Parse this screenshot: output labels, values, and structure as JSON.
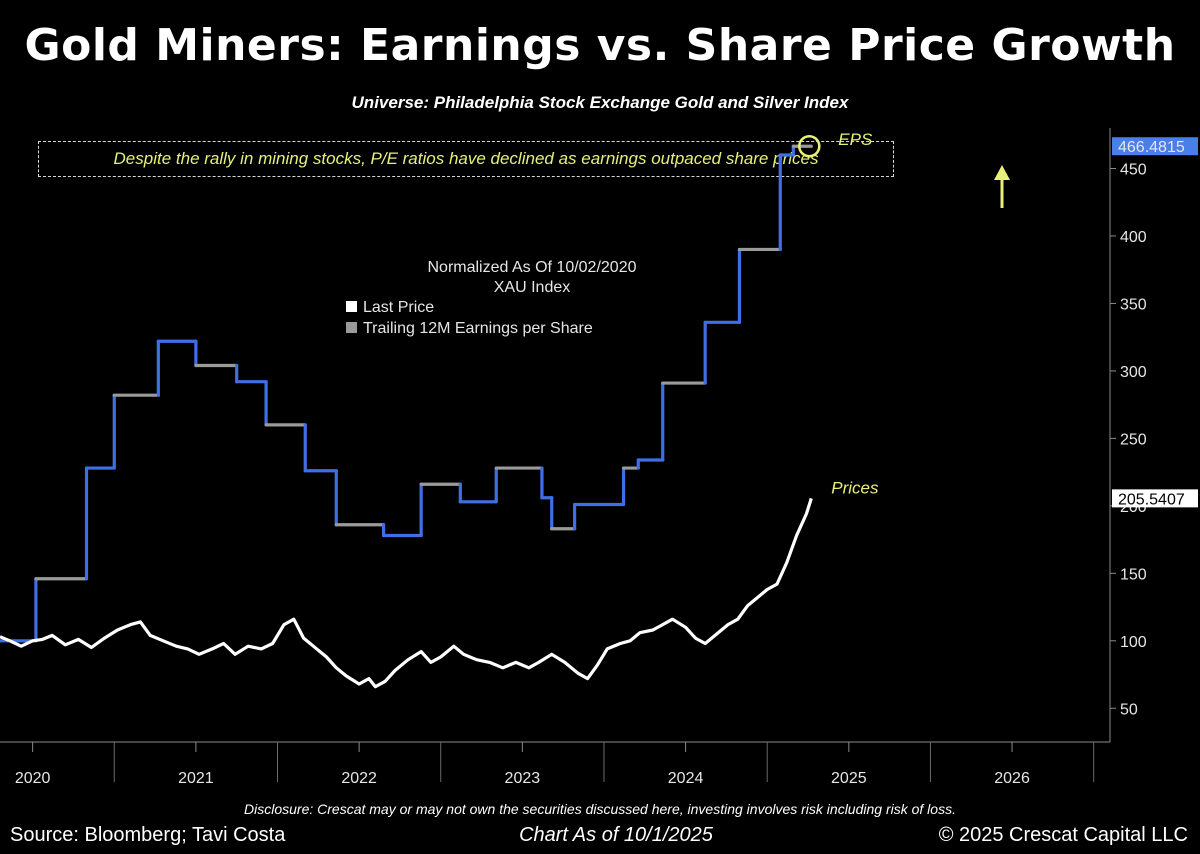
{
  "header": {
    "title": "Gold Miners: Earnings vs. Share Price Growth",
    "subtitle": "Universe: Philadelphia Stock Exchange Gold and Silver Index",
    "callout": "Despite the rally in mining stocks, P/E ratios have declined as earnings outpaced share prices"
  },
  "footer": {
    "disclosure": "Disclosure: Crescat may or may not own the securities discussed here, investing involves risk including risk of loss.",
    "source": "Source: Bloomberg; Tavi Costa",
    "chart_as_of": "Chart As of 10/1/2025",
    "copyright": "© 2025 Crescat Capital LLC"
  },
  "colors": {
    "eps_line": "#3f6fe6",
    "eps_gap": "#9a9a9a",
    "price_line": "#ffffff",
    "accent_yellow": "#e8f07a",
    "last_value_tag": "#4a7ee8"
  },
  "chart_data": {
    "type": "line",
    "normalization_note": "Normalized As Of 10/02/2020",
    "index_name": "XAU Index",
    "legend": [
      {
        "label": "Last Price",
        "swatch": "#ffffff"
      },
      {
        "label": "Trailing 12M Earnings per Share",
        "swatch": "#9a9a9a"
      }
    ],
    "legend_position": "center-top",
    "yaxis": {
      "position": "right",
      "ylim": [
        25,
        480
      ],
      "ticks": [
        50,
        100,
        150,
        200,
        250,
        300,
        350,
        400,
        450
      ]
    },
    "xaxis": {
      "xlim": [
        2019.8,
        2026.6
      ],
      "ticks": [
        "2020",
        "2021",
        "2022",
        "2023",
        "2024",
        "2025",
        "2026"
      ]
    },
    "series": [
      {
        "name": "EPS",
        "style": "step",
        "points": [
          [
            2019.8,
            100
          ],
          [
            2020.02,
            100
          ],
          [
            2020.02,
            146
          ],
          [
            2020.33,
            146
          ],
          [
            2020.33,
            228
          ],
          [
            2020.5,
            228
          ],
          [
            2020.5,
            282
          ],
          [
            2020.77,
            282
          ],
          [
            2020.77,
            322
          ],
          [
            2021.0,
            322
          ],
          [
            2021.0,
            304
          ],
          [
            2021.25,
            304
          ],
          [
            2021.25,
            292
          ],
          [
            2021.43,
            292
          ],
          [
            2021.43,
            260
          ],
          [
            2021.67,
            260
          ],
          [
            2021.67,
            226
          ],
          [
            2021.86,
            226
          ],
          [
            2021.86,
            186
          ],
          [
            2022.15,
            186
          ],
          [
            2022.15,
            178
          ],
          [
            2022.38,
            178
          ],
          [
            2022.38,
            216
          ],
          [
            2022.62,
            216
          ],
          [
            2022.62,
            203
          ],
          [
            2022.84,
            203
          ],
          [
            2022.84,
            228
          ],
          [
            2023.12,
            228
          ],
          [
            2023.12,
            206
          ],
          [
            2023.18,
            206
          ],
          [
            2023.18,
            183
          ],
          [
            2023.32,
            183
          ],
          [
            2023.32,
            201
          ],
          [
            2023.62,
            201
          ],
          [
            2023.62,
            228
          ],
          [
            2023.71,
            228
          ],
          [
            2023.71,
            234
          ],
          [
            2023.86,
            234
          ],
          [
            2023.86,
            291
          ],
          [
            2024.12,
            291
          ],
          [
            2024.12,
            336
          ],
          [
            2024.33,
            336
          ],
          [
            2024.33,
            390
          ],
          [
            2024.58,
            390
          ],
          [
            2024.58,
            460
          ],
          [
            2024.66,
            460
          ],
          [
            2024.66,
            466.4815
          ],
          [
            2024.77,
            466.4815
          ]
        ]
      },
      {
        "name": "Prices",
        "style": "line",
        "points": [
          [
            2019.8,
            103
          ],
          [
            2019.86,
            100
          ],
          [
            2019.93,
            96
          ],
          [
            2020.0,
            100
          ],
          [
            2020.06,
            101
          ],
          [
            2020.12,
            104
          ],
          [
            2020.2,
            97
          ],
          [
            2020.28,
            101
          ],
          [
            2020.36,
            95
          ],
          [
            2020.44,
            102
          ],
          [
            2020.52,
            108
          ],
          [
            2020.6,
            112
          ],
          [
            2020.66,
            114
          ],
          [
            2020.72,
            104
          ],
          [
            2020.8,
            100
          ],
          [
            2020.88,
            96
          ],
          [
            2020.95,
            94
          ],
          [
            2021.02,
            90
          ],
          [
            2021.1,
            94
          ],
          [
            2021.17,
            98
          ],
          [
            2021.24,
            90
          ],
          [
            2021.32,
            96
          ],
          [
            2021.4,
            94
          ],
          [
            2021.47,
            98
          ],
          [
            2021.54,
            112
          ],
          [
            2021.6,
            116
          ],
          [
            2021.66,
            102
          ],
          [
            2021.72,
            96
          ],
          [
            2021.8,
            88
          ],
          [
            2021.86,
            80
          ],
          [
            2021.92,
            74
          ],
          [
            2022.0,
            68
          ],
          [
            2022.06,
            72
          ],
          [
            2022.1,
            66
          ],
          [
            2022.16,
            70
          ],
          [
            2022.22,
            78
          ],
          [
            2022.3,
            86
          ],
          [
            2022.38,
            92
          ],
          [
            2022.44,
            84
          ],
          [
            2022.5,
            88
          ],
          [
            2022.58,
            96
          ],
          [
            2022.64,
            90
          ],
          [
            2022.72,
            86
          ],
          [
            2022.8,
            84
          ],
          [
            2022.88,
            80
          ],
          [
            2022.96,
            84
          ],
          [
            2023.04,
            80
          ],
          [
            2023.1,
            84
          ],
          [
            2023.18,
            90
          ],
          [
            2023.26,
            84
          ],
          [
            2023.34,
            76
          ],
          [
            2023.4,
            72
          ],
          [
            2023.46,
            82
          ],
          [
            2023.52,
            94
          ],
          [
            2023.6,
            98
          ],
          [
            2023.66,
            100
          ],
          [
            2023.72,
            106
          ],
          [
            2023.8,
            108
          ],
          [
            2023.86,
            112
          ],
          [
            2023.92,
            116
          ],
          [
            2024.0,
            110
          ],
          [
            2024.06,
            102
          ],
          [
            2024.12,
            98
          ],
          [
            2024.18,
            104
          ],
          [
            2024.26,
            112
          ],
          [
            2024.32,
            116
          ],
          [
            2024.38,
            126
          ],
          [
            2024.44,
            132
          ],
          [
            2024.5,
            138
          ],
          [
            2024.56,
            142
          ],
          [
            2024.62,
            158
          ],
          [
            2024.68,
            178
          ],
          [
            2024.74,
            194
          ],
          [
            2024.77,
            205.5407
          ]
        ]
      }
    ],
    "last_values": {
      "eps": "466.4815",
      "prices": "205.5407"
    },
    "annotations": {
      "eps_label": "EPS",
      "prices_label": "Prices"
    }
  }
}
